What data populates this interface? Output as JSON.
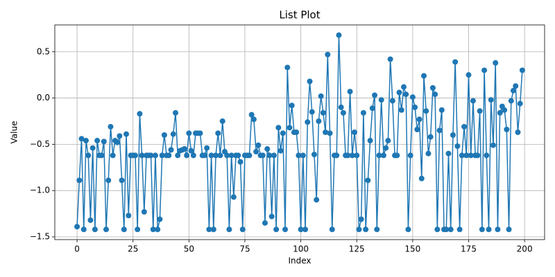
{
  "chart_data": {
    "type": "line",
    "title": "List Plot",
    "xlabel": "Index",
    "ylabel": "Value",
    "x": [
      0,
      1,
      2,
      3,
      4,
      5,
      6,
      7,
      8,
      9,
      10,
      11,
      12,
      13,
      14,
      15,
      16,
      17,
      18,
      19,
      20,
      21,
      22,
      23,
      24,
      25,
      26,
      27,
      28,
      29,
      30,
      31,
      32,
      33,
      34,
      35,
      36,
      37,
      38,
      39,
      40,
      41,
      42,
      43,
      44,
      45,
      46,
      47,
      48,
      49,
      50,
      51,
      52,
      53,
      54,
      55,
      56,
      57,
      58,
      59,
      60,
      61,
      62,
      63,
      64,
      65,
      66,
      67,
      68,
      69,
      70,
      71,
      72,
      73,
      74,
      75,
      76,
      77,
      78,
      79,
      80,
      81,
      82,
      83,
      84,
      85,
      86,
      87,
      88,
      89,
      90,
      91,
      92,
      93,
      94,
      95,
      96,
      97,
      98,
      99,
      100,
      101,
      102,
      103,
      104,
      105,
      106,
      107,
      108,
      109,
      110,
      111,
      112,
      113,
      114,
      115,
      116,
      117,
      118,
      119,
      120,
      121,
      122,
      123,
      124,
      125,
      126,
      127,
      128,
      129,
      130,
      131,
      132,
      133,
      134,
      135,
      136,
      137,
      138,
      139,
      140,
      141,
      142,
      143,
      144,
      145,
      146,
      147,
      148,
      149,
      150,
      151,
      152,
      153,
      154,
      155,
      156,
      157,
      158,
      159,
      160,
      161,
      162,
      163,
      164,
      165,
      166,
      167,
      168,
      169,
      170,
      171,
      172,
      173,
      174,
      175,
      176,
      177,
      178,
      179,
      180,
      181,
      182,
      183,
      184,
      185,
      186,
      187,
      188,
      189,
      190,
      191,
      192,
      193,
      194,
      195,
      196,
      197,
      198,
      199
    ],
    "series": [
      {
        "color": "#1f77b4",
        "values": [
          -1.39,
          -0.89,
          -0.44,
          -1.42,
          -0.46,
          -0.62,
          -1.32,
          -0.54,
          -1.42,
          -0.46,
          -0.62,
          -0.62,
          -0.47,
          -1.42,
          -0.89,
          -0.31,
          -0.62,
          -0.46,
          -0.48,
          -0.41,
          -0.89,
          -1.42,
          -0.39,
          -1.27,
          -0.62,
          -0.62,
          -0.62,
          -1.42,
          -0.17,
          -0.62,
          -1.23,
          -0.62,
          -0.62,
          -0.62,
          -1.42,
          -0.62,
          -1.42,
          -1.31,
          -0.62,
          -0.4,
          -0.62,
          -0.62,
          -0.56,
          -0.39,
          -0.16,
          -0.62,
          -0.57,
          -0.56,
          -0.55,
          -0.62,
          -0.38,
          -0.57,
          -0.62,
          -0.38,
          -0.38,
          -0.38,
          -0.62,
          -0.62,
          -0.54,
          -1.42,
          -0.62,
          -1.42,
          -0.62,
          -0.38,
          -0.62,
          -0.25,
          -0.58,
          -0.62,
          -1.42,
          -0.62,
          -1.07,
          -0.62,
          -0.62,
          -0.69,
          -1.42,
          -0.62,
          -0.62,
          -0.62,
          -0.18,
          -0.23,
          -0.58,
          -0.51,
          -0.62,
          -0.62,
          -1.35,
          -0.55,
          -0.62,
          -1.28,
          -0.62,
          -1.42,
          -0.32,
          -0.57,
          -0.38,
          -1.42,
          0.33,
          -0.32,
          -0.08,
          -0.37,
          -0.37,
          -0.62,
          -1.42,
          -0.62,
          -1.42,
          -0.26,
          0.18,
          -0.15,
          -0.61,
          -1.1,
          -0.25,
          0.02,
          -0.16,
          -0.37,
          0.47,
          -0.38,
          -1.42,
          -0.62,
          -0.62,
          0.68,
          -0.1,
          -0.16,
          -0.62,
          -0.62,
          0.07,
          -0.62,
          -0.37,
          -0.62,
          -1.42,
          -1.31,
          -0.16,
          -1.42,
          -0.89,
          -0.46,
          -0.11,
          0.03,
          -1.42,
          -0.62,
          -0.02,
          -0.62,
          -0.54,
          -0.46,
          0.42,
          -0.03,
          -0.62,
          -0.62,
          0.06,
          -0.13,
          0.12,
          0.04,
          -1.42,
          -0.62,
          0.01,
          -0.1,
          -0.34,
          -0.23,
          -0.87,
          0.24,
          -0.14,
          -0.6,
          -0.42,
          0.11,
          0.04,
          -1.42,
          -0.35,
          -0.13,
          -1.42,
          -1.42,
          -0.6,
          -1.42,
          -0.4,
          0.39,
          -0.52,
          -1.42,
          -0.62,
          -0.31,
          -0.62,
          0.25,
          -0.62,
          -0.03,
          -0.62,
          -0.62,
          -0.14,
          -1.42,
          0.3,
          -0.62,
          -1.42,
          -0.02,
          -0.51,
          0.38,
          -1.42,
          -0.16,
          -0.09,
          -0.13,
          -0.34,
          -1.42,
          -0.03,
          0.08,
          0.13,
          -0.37,
          -0.06,
          0.3
        ]
      }
    ],
    "xlim": [
      -9.95,
      208.95
    ],
    "ylim": [
      -1.53,
      0.79
    ],
    "xticks": [
      0,
      25,
      50,
      75,
      100,
      125,
      150,
      175,
      200
    ],
    "yticks": [
      {
        "value": -1.5,
        "label": "−1.5"
      },
      {
        "value": -1.0,
        "label": "−1.0"
      },
      {
        "value": -0.5,
        "label": "−0.5"
      },
      {
        "value": 0.0,
        "label": "0.0"
      },
      {
        "value": 0.5,
        "label": "0.5"
      }
    ],
    "grid": true
  }
}
